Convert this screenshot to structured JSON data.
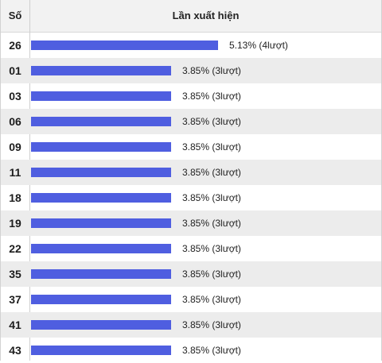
{
  "header": {
    "number_label": "Số",
    "count_label": "Lần xuất hiện"
  },
  "colors": {
    "bar": "#4f5ee0",
    "row_alt": "#ececec",
    "header_bg": "#f2f2f2"
  },
  "chart_data": {
    "type": "bar",
    "orientation": "horizontal",
    "categories": [
      "26",
      "01",
      "03",
      "06",
      "09",
      "11",
      "18",
      "19",
      "22",
      "35",
      "37",
      "41",
      "43"
    ],
    "values": [
      5.13,
      3.85,
      3.85,
      3.85,
      3.85,
      3.85,
      3.85,
      3.85,
      3.85,
      3.85,
      3.85,
      3.85,
      3.85
    ],
    "labels": [
      "5.13% (4lượt)",
      "3.85% (3lượt)",
      "3.85% (3lượt)",
      "3.85% (3lượt)",
      "3.85% (3lượt)",
      "3.85% (3lượt)",
      "3.85% (3lượt)",
      "3.85% (3lượt)",
      "3.85% (3lượt)",
      "3.85% (3lượt)",
      "3.85% (3lượt)",
      "3.85% (3lượt)",
      "3.85% (3lượt)"
    ],
    "title": "",
    "xlabel": "Lần xuất hiện",
    "ylabel": "Số"
  }
}
